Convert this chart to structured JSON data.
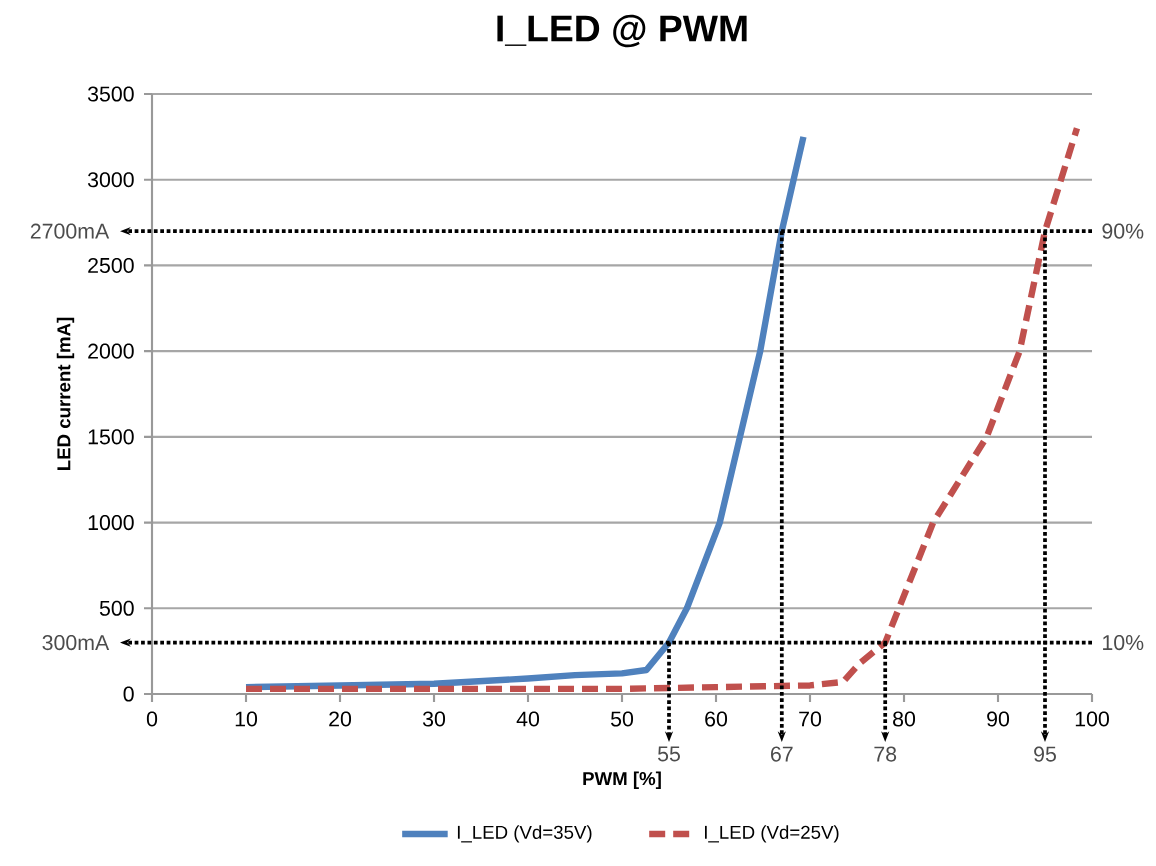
{
  "chart_data": {
    "type": "line",
    "title": "I_LED @ PWM",
    "xlabel": "PWM [%]",
    "ylabel": "LED current [mA]",
    "xlim": [
      0,
      100
    ],
    "xticks": [
      0,
      10,
      20,
      30,
      40,
      50,
      60,
      70,
      80,
      90,
      100
    ],
    "ylim": [
      0,
      3500
    ],
    "yticks": [
      0,
      500,
      1000,
      1500,
      2000,
      2500,
      3000,
      3500
    ],
    "grid": "y",
    "legend": "bottom",
    "marker": "none",
    "series": [
      {
        "name": "I_LED (Vd=35V)",
        "color": "#4f81bd",
        "line_style": "solid",
        "x": [
          10,
          20,
          30,
          40,
          45,
          50,
          52.6,
          55,
          56.9,
          60.4,
          64.7,
          67,
          69.3
        ],
        "values": [
          40,
          50,
          60,
          90,
          110,
          120,
          140,
          300,
          500,
          1000,
          2000,
          2700,
          3250
        ]
      },
      {
        "name": "I_LED (Vd=25V)",
        "color": "#c0504d",
        "line_style": "dashed",
        "x": [
          10,
          20,
          30,
          40,
          50,
          60,
          70,
          73.5,
          75.3,
          78,
          83.1,
          88.8,
          92.3,
          95,
          98.4
        ],
        "values": [
          30,
          30,
          30,
          30,
          30,
          40,
          50,
          70,
          180,
          300,
          1000,
          1500,
          2000,
          2700,
          3300
        ]
      }
    ],
    "ref_lines": [
      {
        "axis": "y",
        "value": 2700,
        "label": "2700mA",
        "color": "#000000",
        "line_style": "dotted"
      },
      {
        "axis": "y",
        "value": 300,
        "label": "300mA",
        "color": "#000000",
        "line_style": "dotted"
      }
    ],
    "annotations": [
      {
        "text": "90%",
        "x": 100,
        "y": 2700
      },
      {
        "text": "10%",
        "x": 100,
        "y": 300
      },
      {
        "text": "55",
        "x": 55,
        "y": 300
      },
      {
        "text": "67",
        "x": 67,
        "y": 2700
      },
      {
        "text": "78",
        "x": 78,
        "y": 300
      },
      {
        "text": "95",
        "x": 95,
        "y": 2700
      }
    ]
  }
}
